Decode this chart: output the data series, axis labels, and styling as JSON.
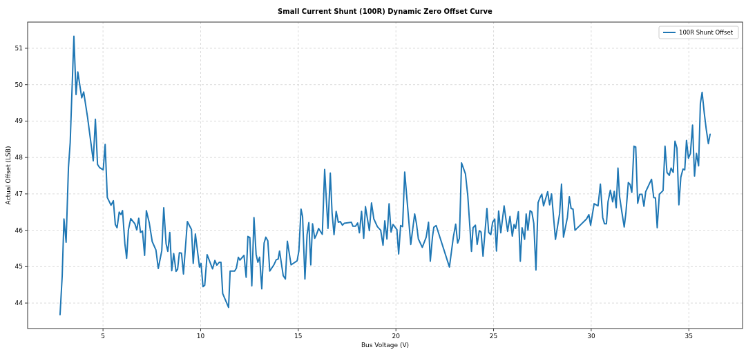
{
  "chart_data": {
    "type": "line",
    "title": "Small Current Shunt (100R) Dynamic Zero Offset Curve",
    "xlabel": "Bus Voltage (V)",
    "ylabel": "Actual Offset (LSB)",
    "xlim": [
      1.14,
      37.75
    ],
    "ylim": [
      43.3,
      51.72
    ],
    "xticks": [
      5,
      10,
      15,
      20,
      25,
      30,
      35
    ],
    "yticks": [
      44,
      45,
      46,
      47,
      48,
      49,
      50,
      51
    ],
    "grid": true,
    "legend": "top right",
    "series": [
      {
        "name": "100R Shunt Offset",
        "color": "#1f77b4",
        "x": [
          2.8,
          2.91,
          3.0,
          3.11,
          3.23,
          3.32,
          3.38,
          3.51,
          3.62,
          3.71,
          3.91,
          4.01,
          4.21,
          4.5,
          4.61,
          4.72,
          4.83,
          5.01,
          5.11,
          5.22,
          5.41,
          5.53,
          5.63,
          5.72,
          5.83,
          5.92,
          6.0,
          6.12,
          6.21,
          6.3,
          6.42,
          6.63,
          6.73,
          6.83,
          6.92,
          7.02,
          7.13,
          7.22,
          7.37,
          7.52,
          7.71,
          7.83,
          8.01,
          8.11,
          8.23,
          8.32,
          8.42,
          8.52,
          8.62,
          8.74,
          8.82,
          8.91,
          9.02,
          9.12,
          9.32,
          9.53,
          9.62,
          9.73,
          9.94,
          10.02,
          10.12,
          10.21,
          10.33,
          10.61,
          10.73,
          10.83,
          10.95,
          11.04,
          11.13,
          11.43,
          11.51,
          11.74,
          11.83,
          11.93,
          12.01,
          12.22,
          12.33,
          12.42,
          12.52,
          12.62,
          12.73,
          12.84,
          12.93,
          13.02,
          13.13,
          13.25,
          13.34,
          13.44,
          13.54,
          13.76,
          13.87,
          13.97,
          14.04,
          14.23,
          14.34,
          14.44,
          14.63,
          14.94,
          15.03,
          15.14,
          15.22,
          15.34,
          15.45,
          15.54,
          15.64,
          15.73,
          15.84,
          15.93,
          16.04,
          16.23,
          16.35,
          16.52,
          16.64,
          16.73,
          16.83,
          16.94,
          17.05,
          17.15,
          17.26,
          17.35,
          17.72,
          17.8,
          17.93,
          18.04,
          18.13,
          18.24,
          18.35,
          18.44,
          18.53,
          18.64,
          18.75,
          18.87,
          19.05,
          19.22,
          19.34,
          19.43,
          19.54,
          19.65,
          19.75,
          19.85,
          20.05,
          20.14,
          20.24,
          20.34,
          20.45,
          20.54,
          20.76,
          20.96,
          21.05,
          21.15,
          21.35,
          21.55,
          21.67,
          21.76,
          21.87,
          21.94,
          22.06,
          22.74,
          22.94,
          23.06,
          23.16,
          23.25,
          23.36,
          23.56,
          23.68,
          23.87,
          23.95,
          24.07,
          24.16,
          24.27,
          24.36,
          24.46,
          24.66,
          24.75,
          24.86,
          24.95,
          25.06,
          25.15,
          25.26,
          25.37,
          25.54,
          25.72,
          25.84,
          25.96,
          26.05,
          26.13,
          26.27,
          26.37,
          26.46,
          26.59,
          26.67,
          26.76,
          26.87,
          26.96,
          27.06,
          27.17,
          27.28,
          27.38,
          27.47,
          27.56,
          27.77,
          27.87,
          27.97,
          28.17,
          28.38,
          28.48,
          28.58,
          28.78,
          28.88,
          28.97,
          29.07,
          29.17,
          29.76,
          29.88,
          29.97,
          30.15,
          30.35,
          30.47,
          30.59,
          30.68,
          30.78,
          30.86,
          30.98,
          31.1,
          31.18,
          31.28,
          31.37,
          31.45,
          31.57,
          31.69,
          31.78,
          31.9,
          31.99,
          32.08,
          32.19,
          32.28,
          32.38,
          32.48,
          32.6,
          32.7,
          32.79,
          32.99,
          33.09,
          33.2,
          33.29,
          33.38,
          33.49,
          33.68,
          33.78,
          33.88,
          34.0,
          34.09,
          34.2,
          34.29,
          34.39,
          34.49,
          34.59,
          34.7,
          34.79,
          34.88,
          34.98,
          35.08,
          35.19,
          35.29,
          35.39,
          35.5,
          35.59,
          35.68,
          35.79,
          35.89,
          36.0,
          36.09
        ],
        "values": [
          43.68,
          44.74,
          46.31,
          45.67,
          47.72,
          48.41,
          49.35,
          51.33,
          49.73,
          50.35,
          49.64,
          49.8,
          49.1,
          47.91,
          49.05,
          47.81,
          47.72,
          47.66,
          48.36,
          46.9,
          46.69,
          46.81,
          46.16,
          46.07,
          46.5,
          46.43,
          46.54,
          45.63,
          45.23,
          46.01,
          46.32,
          46.18,
          46.01,
          46.33,
          45.94,
          45.98,
          45.31,
          46.54,
          46.2,
          45.69,
          45.46,
          44.95,
          45.44,
          46.62,
          45.63,
          45.42,
          45.94,
          44.89,
          45.36,
          44.87,
          44.93,
          45.38,
          45.37,
          44.8,
          46.24,
          46.02,
          45.09,
          45.9,
          44.99,
          45.09,
          44.45,
          44.49,
          45.33,
          44.94,
          45.17,
          45.04,
          45.12,
          45.12,
          44.26,
          43.88,
          44.88,
          44.88,
          44.96,
          45.26,
          45.18,
          45.31,
          44.71,
          45.83,
          45.8,
          44.47,
          46.35,
          45.34,
          45.12,
          45.26,
          44.39,
          45.65,
          45.81,
          45.71,
          44.88,
          45.06,
          45.19,
          45.21,
          45.43,
          44.75,
          44.66,
          45.7,
          45.05,
          45.16,
          45.43,
          46.58,
          46.38,
          44.66,
          45.88,
          46.21,
          45.05,
          46.18,
          45.78,
          45.88,
          46.05,
          45.89,
          47.67,
          46.05,
          47.57,
          46.48,
          45.88,
          46.52,
          46.22,
          46.24,
          46.14,
          46.19,
          46.22,
          46.11,
          46.11,
          46.2,
          45.93,
          46.52,
          45.78,
          46.65,
          46.35,
          45.99,
          46.75,
          46.31,
          46.1,
          46.0,
          45.59,
          46.26,
          45.76,
          46.73,
          45.95,
          46.16,
          46.02,
          45.35,
          46.13,
          46.1,
          47.6,
          47.02,
          45.61,
          46.45,
          46.19,
          45.76,
          45.53,
          45.81,
          46.22,
          45.15,
          45.81,
          46.08,
          46.13,
          44.99,
          45.81,
          46.17,
          45.65,
          45.78,
          47.85,
          47.55,
          46.95,
          45.42,
          46.07,
          46.14,
          45.61,
          45.99,
          45.95,
          45.29,
          46.6,
          45.94,
          45.88,
          46.22,
          46.31,
          45.43,
          46.53,
          45.93,
          46.67,
          45.97,
          46.38,
          45.84,
          46.16,
          46.05,
          46.51,
          45.15,
          46.07,
          45.75,
          46.45,
          46.0,
          46.54,
          46.5,
          46.19,
          44.91,
          46.76,
          46.9,
          46.99,
          46.67,
          47.06,
          46.7,
          47.0,
          45.75,
          46.45,
          47.27,
          45.81,
          46.35,
          46.92,
          46.6,
          46.58,
          46.0,
          46.31,
          46.43,
          46.14,
          46.73,
          46.67,
          47.27,
          46.35,
          46.18,
          46.18,
          46.78,
          47.1,
          46.78,
          47.07,
          46.62,
          47.71,
          46.94,
          46.5,
          46.09,
          46.5,
          47.31,
          47.26,
          47.04,
          48.31,
          48.29,
          46.74,
          46.99,
          46.99,
          46.66,
          47.06,
          47.29,
          47.4,
          46.9,
          46.89,
          46.07,
          46.99,
          47.09,
          48.31,
          47.59,
          47.51,
          47.71,
          47.59,
          48.45,
          48.26,
          46.7,
          47.46,
          47.68,
          47.66,
          48.47,
          47.98,
          48.11,
          48.89,
          47.49,
          48.11,
          47.77,
          49.48,
          49.79,
          49.22,
          48.78,
          48.38,
          48.64
        ]
      }
    ]
  }
}
